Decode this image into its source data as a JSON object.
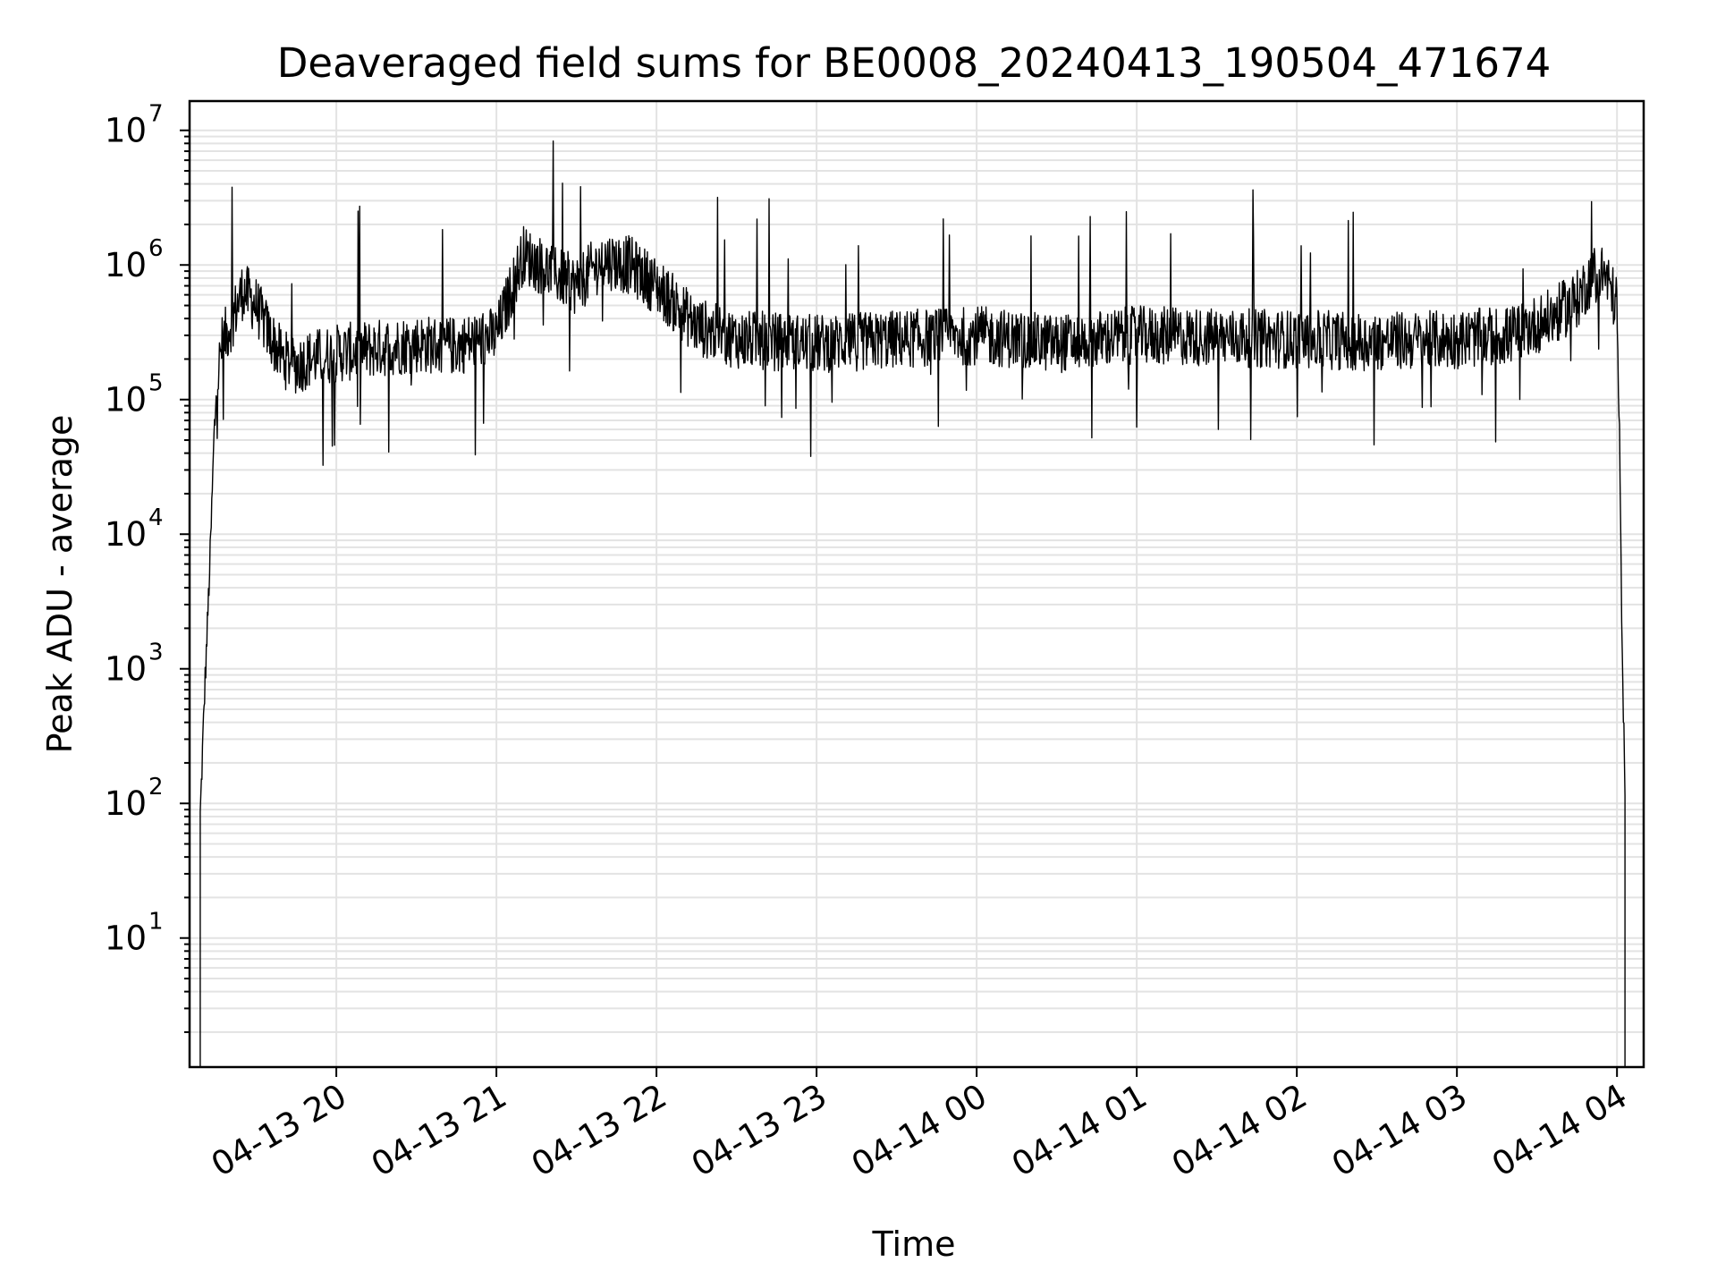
{
  "chart_data": {
    "type": "line",
    "title": "Deaveraged field sums for BE0008_20240413_190504_471674",
    "xlabel": "Time",
    "ylabel": "Peak ADU - average",
    "yscale": "log",
    "ylim": [
      1.1,
      16500000
    ],
    "xlim": [
      "2024-04-13 19:05",
      "2024-04-14 04:10"
    ],
    "grid": true,
    "x_ticks": [
      "04-13 20",
      "04-13 21",
      "04-13 22",
      "04-13 23",
      "04-14 00",
      "04-14 01",
      "04-14 02",
      "04-14 03",
      "04-14 04"
    ],
    "y_ticks": [
      {
        "value": 10,
        "base": "10",
        "exp": "1"
      },
      {
        "value": 100,
        "base": "10",
        "exp": "2"
      },
      {
        "value": 1000,
        "base": "10",
        "exp": "3"
      },
      {
        "value": 10000,
        "base": "10",
        "exp": "4"
      },
      {
        "value": 100000,
        "base": "10",
        "exp": "5"
      },
      {
        "value": 1000000,
        "base": "10",
        "exp": "6"
      },
      {
        "value": 10000000,
        "base": "10",
        "exp": "7"
      }
    ],
    "series": [
      {
        "color": "#000000",
        "x": [
          "2024-04-13 19:09",
          "2024-04-13 19:10",
          "2024-04-13 19:11",
          "2024-04-13 19:12",
          "2024-04-13 19:13",
          "2024-04-13 19:14",
          "2024-04-13 19:15",
          "2024-04-13 19:17",
          "2024-04-13 19:20",
          "2024-04-13 19:25",
          "2024-04-13 19:30",
          "2024-04-13 19:35",
          "2024-04-13 19:40",
          "2024-04-13 19:45",
          "2024-04-13 19:50",
          "2024-04-13 20:00",
          "2024-04-13 20:15",
          "2024-04-13 20:30",
          "2024-04-13 20:45",
          "2024-04-13 21:00",
          "2024-04-13 21:10",
          "2024-04-13 21:20",
          "2024-04-13 21:30",
          "2024-04-13 21:40",
          "2024-04-13 21:50",
          "2024-04-13 22:00",
          "2024-04-13 22:15",
          "2024-04-13 22:30",
          "2024-04-13 23:00",
          "2024-04-13 23:30",
          "2024-04-14 00:00",
          "2024-04-14 00:30",
          "2024-04-14 01:00",
          "2024-04-14 01:30",
          "2024-04-14 02:00",
          "2024-04-14 02:30",
          "2024-04-14 03:00",
          "2024-04-14 03:20",
          "2024-04-14 03:35",
          "2024-04-14 03:45",
          "2024-04-14 03:50",
          "2024-04-14 03:55",
          "2024-04-14 04:00",
          "2024-04-14 04:01",
          "2024-04-14 04:02",
          "2024-04-14 04:03"
        ],
        "y": [
          80,
          300,
          1000,
          3000,
          10000,
          40000,
          120000,
          250000,
          350000,
          650000,
          500000,
          300000,
          200000,
          180000,
          200000,
          220000,
          240000,
          260000,
          250000,
          300000,
          1200000,
          900000,
          700000,
          1100000,
          1000000,
          700000,
          350000,
          280000,
          260000,
          280000,
          300000,
          260000,
          300000,
          290000,
          280000,
          270000,
          280000,
          300000,
          400000,
          550000,
          800000,
          900000,
          500000,
          40000,
          1000,
          150
        ]
      }
    ]
  }
}
